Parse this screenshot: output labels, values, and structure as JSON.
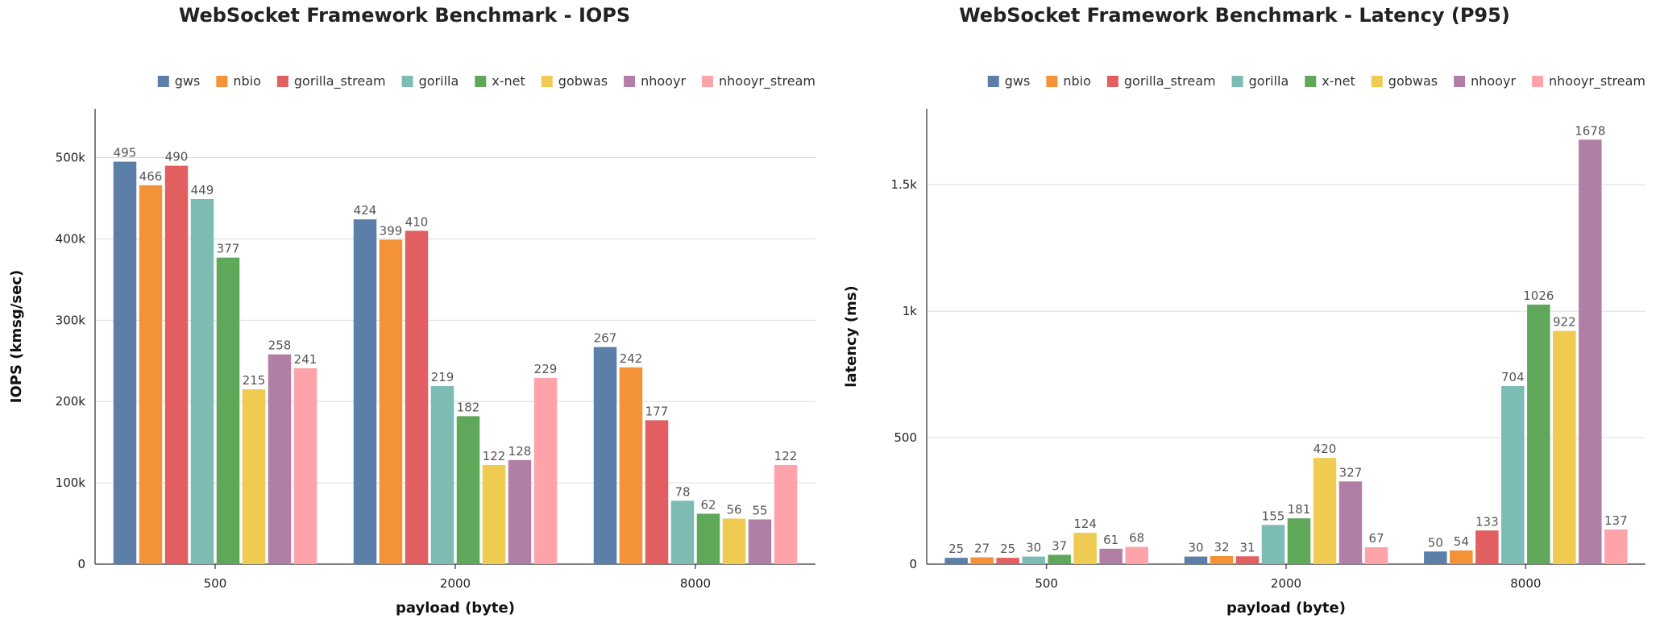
{
  "chart_data": [
    {
      "type": "bar",
      "title": "WebSocket Framework Benchmark - IOPS",
      "xlabel": "payload (byte)",
      "ylabel": "IOPS (kmsg/sec)",
      "categories": [
        "500",
        "2000",
        "8000"
      ],
      "ylim": [
        0,
        560000
      ],
      "yticks": [
        0,
        100000,
        200000,
        300000,
        400000,
        500000
      ],
      "ytick_labels": [
        "0",
        "100k",
        "200k",
        "300k",
        "400k",
        "500k"
      ],
      "legend_position": "top-right",
      "grid": true,
      "series": [
        {
          "name": "gws",
          "color": "#5b7fa8",
          "values": [
            495000,
            424000,
            267000
          ],
          "labels": [
            "495",
            "424",
            "267"
          ]
        },
        {
          "name": "nbio",
          "color": "#f39237",
          "values": [
            466000,
            399000,
            242000
          ],
          "labels": [
            "466",
            "399",
            "242"
          ]
        },
        {
          "name": "gorilla_stream",
          "color": "#e15f61",
          "values": [
            490000,
            410000,
            177000
          ],
          "labels": [
            "490",
            "410",
            "177"
          ]
        },
        {
          "name": "gorilla",
          "color": "#7dbbb5",
          "values": [
            449000,
            219000,
            78000
          ],
          "labels": [
            "449",
            "219",
            "78"
          ]
        },
        {
          "name": "x-net",
          "color": "#5fa759",
          "values": [
            377000,
            182000,
            62000
          ],
          "labels": [
            "377",
            "182",
            "62"
          ]
        },
        {
          "name": "gobwas",
          "color": "#efcb51",
          "values": [
            215000,
            122000,
            56000
          ],
          "labels": [
            "215",
            "122",
            "56"
          ]
        },
        {
          "name": "nhooyr",
          "color": "#b17fa6",
          "values": [
            258000,
            128000,
            55000
          ],
          "labels": [
            "258",
            "128",
            "55"
          ]
        },
        {
          "name": "nhooyr_stream",
          "color": "#fea3aa",
          "values": [
            241000,
            229000,
            122000
          ],
          "labels": [
            "241",
            "229",
            "122"
          ]
        }
      ]
    },
    {
      "type": "bar",
      "title": "WebSocket Framework Benchmark - Latency (P95)",
      "xlabel": "payload (byte)",
      "ylabel": "latency (ms)",
      "categories": [
        "500",
        "2000",
        "8000"
      ],
      "ylim": [
        0,
        1800
      ],
      "yticks": [
        0,
        500,
        1000,
        1500
      ],
      "ytick_labels": [
        "0",
        "500",
        "1k",
        "1.5k"
      ],
      "legend_position": "top-right",
      "grid": true,
      "series": [
        {
          "name": "gws",
          "color": "#5b7fa8",
          "values": [
            25,
            30,
            50
          ],
          "labels": [
            "25",
            "30",
            "50"
          ]
        },
        {
          "name": "nbio",
          "color": "#f39237",
          "values": [
            27,
            32,
            54
          ],
          "labels": [
            "27",
            "32",
            "54"
          ]
        },
        {
          "name": "gorilla_stream",
          "color": "#e15f61",
          "values": [
            25,
            31,
            133
          ],
          "labels": [
            "25",
            "31",
            "133"
          ]
        },
        {
          "name": "gorilla",
          "color": "#7dbbb5",
          "values": [
            30,
            155,
            704
          ],
          "labels": [
            "30",
            "155",
            "704"
          ]
        },
        {
          "name": "x-net",
          "color": "#5fa759",
          "values": [
            37,
            181,
            1026
          ],
          "labels": [
            "37",
            "181",
            "1026"
          ]
        },
        {
          "name": "gobwas",
          "color": "#efcb51",
          "values": [
            124,
            420,
            922
          ],
          "labels": [
            "124",
            "420",
            "922"
          ]
        },
        {
          "name": "nhooyr",
          "color": "#b17fa6",
          "values": [
            61,
            327,
            1678
          ],
          "labels": [
            "61",
            "327",
            "1678"
          ]
        },
        {
          "name": "nhooyr_stream",
          "color": "#fea3aa",
          "values": [
            68,
            67,
            137
          ],
          "labels": [
            "68",
            "67",
            "137"
          ]
        }
      ]
    }
  ]
}
